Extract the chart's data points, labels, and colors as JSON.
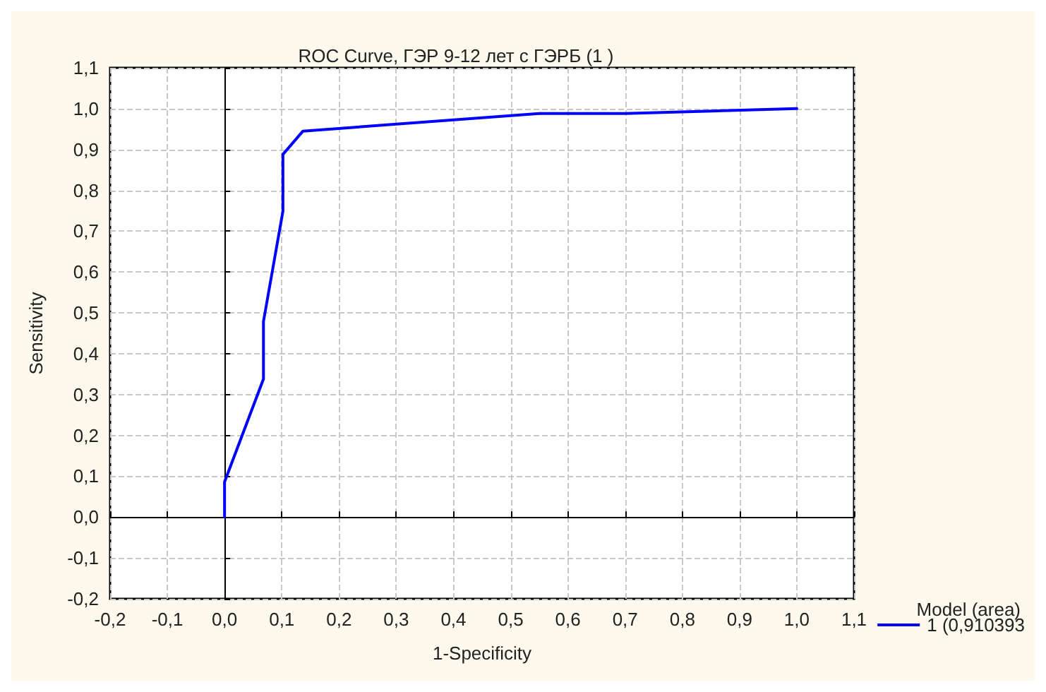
{
  "chart_data": {
    "type": "line",
    "title": "ROC Curve, ГЭР 9-12 лет с ГЭРБ (1 )",
    "xlabel": "1-Specificity",
    "ylabel": "Sensitivity",
    "legend_title": "Model (area)",
    "legend": "bottom right",
    "grid": true,
    "marker": "none",
    "line_style": "solid",
    "x": [
      0,
      0,
      0.068,
      0.068,
      0.102,
      0.102,
      0.137,
      0.551,
      0.7,
      1
    ],
    "series": [
      {
        "name": "1 (0,910393",
        "color": "#0000ff",
        "values": [
          0,
          0.086,
          0.338,
          0.479,
          0.749,
          0.888,
          0.945,
          0.988,
          0.988,
          1
        ]
      }
    ],
    "xlim": [
      -0.2,
      1.1
    ],
    "xticks": [
      {
        "value": -0.2,
        "label": "-0,2"
      },
      {
        "value": -0.1,
        "label": "-0,1"
      },
      {
        "value": 0,
        "label": "0,0"
      },
      {
        "value": 0.1,
        "label": "0,1"
      },
      {
        "value": 0.2,
        "label": "0,2"
      },
      {
        "value": 0.3,
        "label": "0,3"
      },
      {
        "value": 0.4,
        "label": "0,4"
      },
      {
        "value": 0.5,
        "label": "0,5"
      },
      {
        "value": 0.6,
        "label": "0,6"
      },
      {
        "value": 0.7,
        "label": "0,7"
      },
      {
        "value": 0.8,
        "label": "0,8"
      },
      {
        "value": 0.9,
        "label": "0,9"
      },
      {
        "value": 1,
        "label": "1,0"
      },
      {
        "value": 1.1,
        "label": "1,1"
      }
    ],
    "ylim": [
      -0.2,
      1.1
    ],
    "yticks": [
      {
        "value": -0.2,
        "label": "-0,2"
      },
      {
        "value": -0.1,
        "label": "-0,1"
      },
      {
        "value": 0,
        "label": "0,0"
      },
      {
        "value": 0.1,
        "label": "0,1"
      },
      {
        "value": 0.2,
        "label": "0,2"
      },
      {
        "value": 0.3,
        "label": "0,3"
      },
      {
        "value": 0.4,
        "label": "0,4"
      },
      {
        "value": 0.5,
        "label": "0,5"
      },
      {
        "value": 0.6,
        "label": "0,6"
      },
      {
        "value": 0.7,
        "label": "0,7"
      },
      {
        "value": 0.8,
        "label": "0,8"
      },
      {
        "value": 0.9,
        "label": "0,9"
      },
      {
        "value": 1,
        "label": "1,0"
      },
      {
        "value": 1.1,
        "label": "1,1"
      }
    ]
  }
}
